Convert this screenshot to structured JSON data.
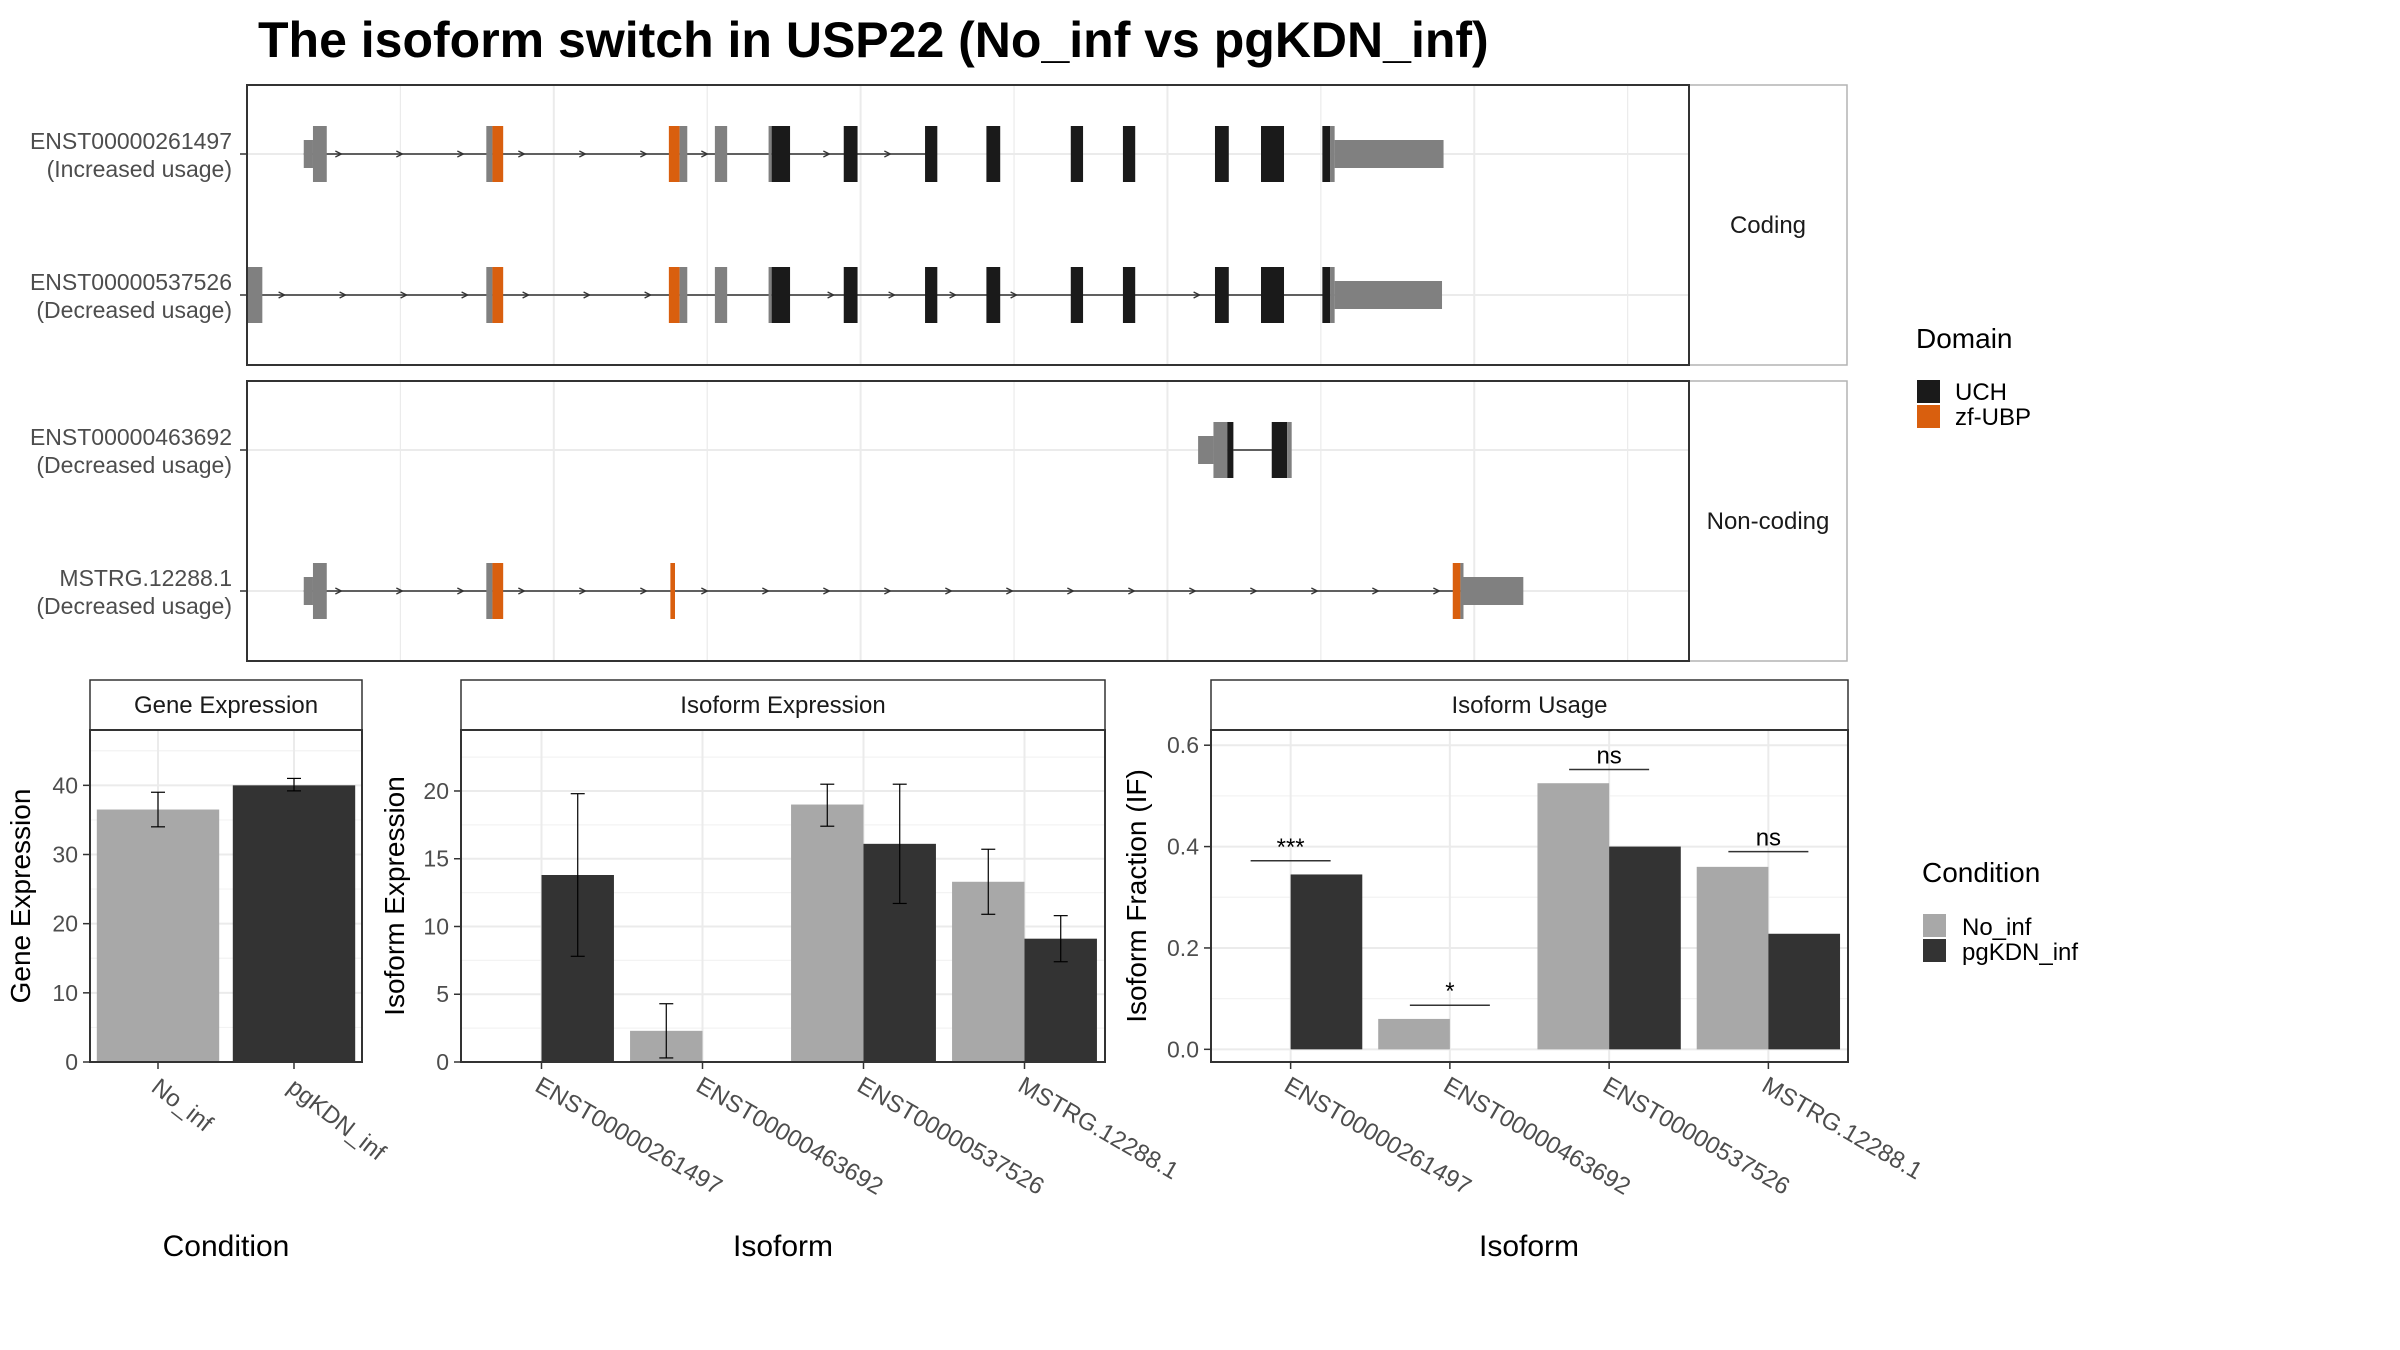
{
  "title": "The isoform switch in USP22 (No_inf vs pgKDN_inf)",
  "colors": {
    "uch": "#1a1a1a",
    "zf_ubp": "#d95f0e",
    "no_domain_exon": "#808080",
    "no_inf": "#a8a8a8",
    "pgkdn_inf": "#333333",
    "grid": "#ebebeb",
    "strip_bg": "#ffffff",
    "panel_border": "#333333"
  },
  "structure": {
    "facets": [
      {
        "label": "Coding",
        "tracks": [
          {
            "id": "ENST00000261497",
            "usage": "(Increased usage)",
            "intron": [
              0.185,
              2.24
            ],
            "exons": [
              [
                0.185,
                0.215,
                "utr",
                null
              ],
              [
                0.215,
                0.26,
                "cds",
                null
              ],
              [
                0.78,
                0.8,
                "cds",
                null
              ],
              [
                0.8,
                0.835,
                "cds",
                "zf"
              ],
              [
                1.375,
                1.41,
                "cds",
                "zf"
              ],
              [
                1.41,
                1.435,
                "cds",
                null
              ],
              [
                1.525,
                1.565,
                "cds",
                null
              ],
              [
                1.7,
                1.71,
                "cds",
                null
              ],
              [
                1.71,
                1.77,
                "cds",
                "uch"
              ],
              [
                1.945,
                1.99,
                "cds",
                "uch"
              ],
              [
                2.21,
                2.25,
                "cds",
                "uch"
              ],
              [
                2.41,
                2.455,
                "cds",
                "uch"
              ],
              [
                2.685,
                2.725,
                "cds",
                "uch"
              ],
              [
                2.855,
                2.895,
                "cds",
                "uch"
              ],
              [
                3.155,
                3.2,
                "cds",
                "uch"
              ],
              [
                3.305,
                3.38,
                "cds",
                "uch"
              ],
              [
                3.505,
                3.53,
                "cds",
                "uch"
              ],
              [
                3.53,
                3.545,
                "cds",
                null
              ],
              [
                3.545,
                3.9,
                "utr",
                null
              ]
            ]
          },
          {
            "id": "ENST00000537526",
            "usage": "(Decreased usage)",
            "intron": [
              0.0,
              3.545
            ],
            "exons": [
              [
                0.0,
                0.05,
                "cds",
                null
              ],
              [
                0.78,
                0.8,
                "cds",
                null
              ],
              [
                0.8,
                0.835,
                "cds",
                "zf"
              ],
              [
                1.375,
                1.41,
                "cds",
                "zf"
              ],
              [
                1.41,
                1.435,
                "cds",
                null
              ],
              [
                1.525,
                1.565,
                "cds",
                null
              ],
              [
                1.7,
                1.71,
                "cds",
                null
              ],
              [
                1.71,
                1.77,
                "cds",
                "uch"
              ],
              [
                1.945,
                1.99,
                "cds",
                "uch"
              ],
              [
                2.21,
                2.25,
                "cds",
                "uch"
              ],
              [
                2.41,
                2.455,
                "cds",
                "uch"
              ],
              [
                2.685,
                2.725,
                "cds",
                "uch"
              ],
              [
                2.855,
                2.895,
                "cds",
                "uch"
              ],
              [
                3.155,
                3.2,
                "cds",
                "uch"
              ],
              [
                3.305,
                3.38,
                "cds",
                "uch"
              ],
              [
                3.505,
                3.53,
                "cds",
                "uch"
              ],
              [
                3.53,
                3.545,
                "cds",
                null
              ],
              [
                3.545,
                3.895,
                "utr",
                null
              ]
            ]
          }
        ]
      },
      {
        "label": "Non-coding",
        "tracks": [
          {
            "id": "ENST00000463692",
            "usage": "(Decreased usage)",
            "intron": [
              3.215,
              3.365
            ],
            "exons": [
              [
                3.1,
                3.15,
                "utr",
                null
              ],
              [
                3.15,
                3.195,
                "cds",
                null
              ],
              [
                3.195,
                3.215,
                "cds",
                "uch"
              ],
              [
                3.34,
                3.39,
                "cds",
                "uch"
              ],
              [
                3.39,
                3.405,
                "cds",
                null
              ]
            ]
          },
          {
            "id": "MSTRG.12288.1",
            "usage": "(Decreased usage)",
            "intron": [
              0.185,
              3.96
            ],
            "exons": [
              [
                0.185,
                0.215,
                "utr",
                null
              ],
              [
                0.215,
                0.26,
                "cds",
                null
              ],
              [
                0.78,
                0.8,
                "cds",
                null
              ],
              [
                0.8,
                0.835,
                "cds",
                "zf"
              ],
              [
                1.38,
                1.395,
                "cds",
                "zf"
              ],
              [
                3.93,
                3.955,
                "cds",
                "zf"
              ],
              [
                3.955,
                3.965,
                "cds",
                null
              ],
              [
                3.965,
                4.16,
                "utr",
                null
              ]
            ]
          }
        ]
      }
    ]
  },
  "legend_domain": {
    "title": "Domain",
    "items": [
      {
        "label": "UCH",
        "color": "#1a1a1a"
      },
      {
        "label": "zf-UBP",
        "color": "#d95f0e"
      }
    ]
  },
  "legend_condition": {
    "title": "Condition",
    "items": [
      {
        "label": "No_inf",
        "color": "#a8a8a8"
      },
      {
        "label": "pgKDN_inf",
        "color": "#333333"
      }
    ]
  },
  "chart_data": [
    {
      "type": "bar",
      "title": "Gene Expression",
      "xlabel": "Condition",
      "ylabel": "Gene Expression",
      "ylim": [
        0,
        48
      ],
      "yticks": [
        0,
        10,
        20,
        30,
        40
      ],
      "categories": [
        "No_inf",
        "pgKDN_inf"
      ],
      "values": [
        36.5,
        40.0
      ],
      "errors": [
        [
          34.0,
          39.0
        ],
        [
          39.2,
          41.0
        ]
      ],
      "fills": [
        "#a8a8a8",
        "#333333"
      ]
    },
    {
      "type": "bar",
      "title": "Isoform Expression",
      "xlabel": "Isoform",
      "ylabel": "Isoform Expression",
      "ylim": [
        0,
        24.5
      ],
      "yticks": [
        0,
        5,
        10,
        15,
        20
      ],
      "categories": [
        "ENST00000261497",
        "ENST00000463692",
        "ENST00000537526",
        "MSTRG.12288.1"
      ],
      "series": [
        {
          "name": "No_inf",
          "values": [
            0,
            2.3,
            19.0,
            13.3
          ],
          "errors": [
            [
              0,
              0
            ],
            [
              0.3,
              4.3
            ],
            [
              17.4,
              20.5
            ],
            [
              10.9,
              15.7
            ]
          ]
        },
        {
          "name": "pgKDN_inf",
          "values": [
            13.8,
            0,
            16.1,
            9.1
          ],
          "errors": [
            [
              7.8,
              19.8
            ],
            [
              0,
              0
            ],
            [
              11.7,
              20.5
            ],
            [
              7.4,
              10.8
            ]
          ]
        }
      ]
    },
    {
      "type": "bar",
      "title": "Isoform Usage",
      "xlabel": "Isoform",
      "ylabel": "Isoform Fraction (IF)",
      "ylim": [
        -0.025,
        0.63
      ],
      "yticks": [
        0.0,
        0.2,
        0.4,
        0.6
      ],
      "ytick_labels": [
        "0.0",
        "0.2",
        "0.4",
        "0.6"
      ],
      "categories": [
        "ENST00000261497",
        "ENST00000463692",
        "ENST00000537526",
        "MSTRG.12288.1"
      ],
      "series": [
        {
          "name": "No_inf",
          "values": [
            0,
            0.06,
            0.525,
            0.36
          ]
        },
        {
          "name": "pgKDN_inf",
          "values": [
            0.345,
            0,
            0.4,
            0.228
          ]
        }
      ],
      "significance": [
        {
          "label": "***",
          "y": 0.372
        },
        {
          "label": "*",
          "y": 0.087
        },
        {
          "label": "ns",
          "y": 0.552
        },
        {
          "label": "ns",
          "y": 0.39
        }
      ]
    }
  ]
}
